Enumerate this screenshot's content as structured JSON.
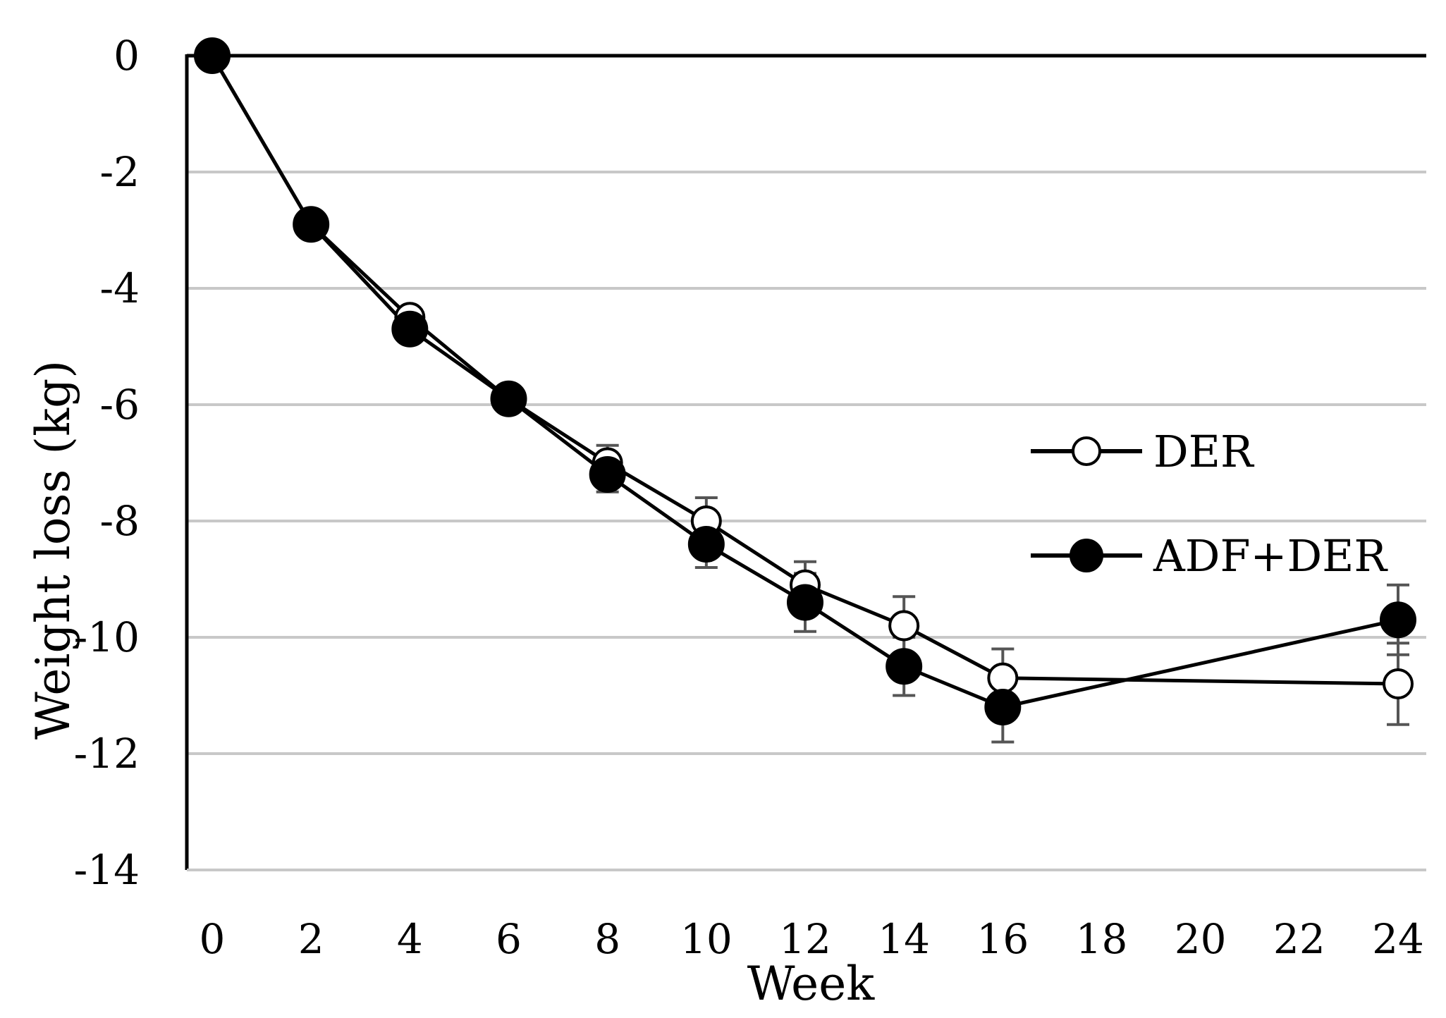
{
  "chart_data": {
    "type": "line",
    "xlabel": "Week",
    "ylabel": "Weight loss (kg)",
    "xlim": [
      0,
      24
    ],
    "ylim": [
      -14,
      0
    ],
    "x_ticks": [
      "0",
      "2",
      "4",
      "6",
      "8",
      "10",
      "12",
      "14",
      "16",
      "18",
      "20",
      "22",
      "24"
    ],
    "y_ticks": [
      "0",
      "-2",
      "-4",
      "-6",
      "-8",
      "-10",
      "-12",
      "-14"
    ],
    "grid": "horizontal",
    "legend_position": "right",
    "x": [
      0,
      2,
      4,
      6,
      8,
      10,
      12,
      14,
      16,
      24
    ],
    "series": [
      {
        "name": "DER",
        "marker": "open-circle",
        "color": "#000000",
        "values": [
          0,
          -2.9,
          -4.5,
          -5.9,
          -7.0,
          -8.0,
          -9.1,
          -9.8,
          -10.7,
          -10.8
        ],
        "errors": [
          0,
          0.1,
          0.1,
          0.15,
          0.3,
          0.4,
          0.4,
          0.5,
          0.5,
          0.7
        ]
      },
      {
        "name": "ADF+DER",
        "marker": "filled-circle",
        "color": "#000000",
        "values": [
          0,
          -2.9,
          -4.7,
          -5.9,
          -7.2,
          -8.4,
          -9.4,
          -10.5,
          -11.2,
          -9.7
        ],
        "errors": [
          0,
          0.1,
          0.1,
          0.15,
          0.3,
          0.4,
          0.5,
          0.5,
          0.6,
          0.6
        ]
      }
    ]
  }
}
